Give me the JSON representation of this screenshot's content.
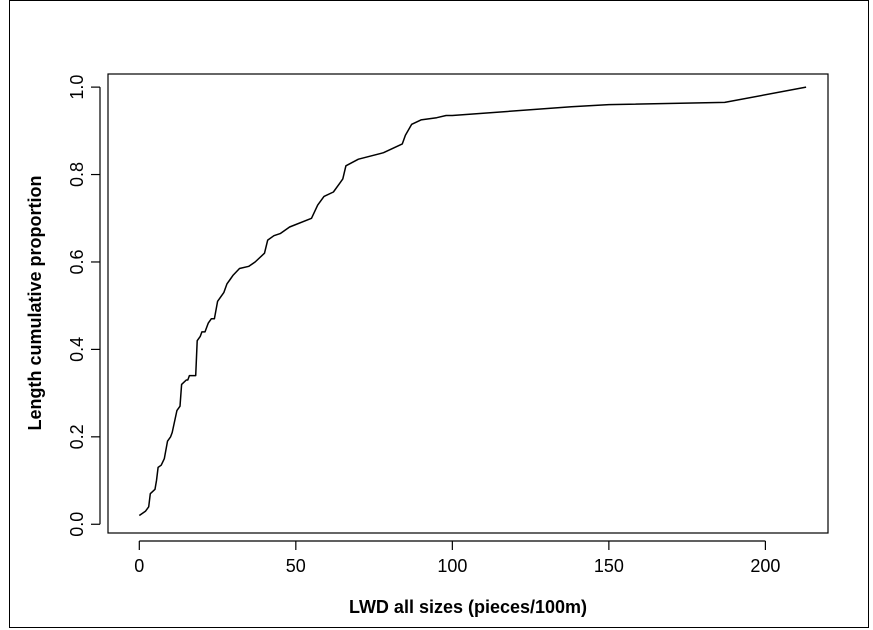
{
  "chart_data": {
    "type": "line",
    "title": "",
    "xlabel": "LWD all sizes (pieces/100m)",
    "ylabel": "Length cumulative proportion",
    "xlim": [
      -10,
      220
    ],
    "ylim": [
      -0.02,
      1.03
    ],
    "xticks": [
      0,
      50,
      100,
      150,
      200
    ],
    "yticks": [
      0.0,
      0.2,
      0.4,
      0.6,
      0.8,
      1.0
    ],
    "xtick_labels": [
      "0",
      "50",
      "100",
      "150",
      "200"
    ],
    "ytick_labels": [
      "0.0",
      "0.2",
      "0.4",
      "0.6",
      "0.8",
      "1.0"
    ],
    "grid": false,
    "series": [
      {
        "color": "#000000",
        "x": [
          0,
          2,
          3,
          3.5,
          5,
          5.5,
          6,
          7,
          8,
          9,
          10,
          10.5,
          12,
          13,
          13.5,
          15,
          15.5,
          16,
          18,
          18.5,
          19.5,
          20,
          21,
          22,
          23,
          24,
          25,
          27,
          28,
          29,
          30,
          32,
          35,
          37,
          40,
          41,
          43,
          45,
          48,
          55,
          57,
          59,
          62,
          64,
          65,
          66,
          70,
          78,
          84,
          85,
          87,
          90,
          95,
          98,
          100,
          138,
          150,
          187,
          213
        ],
        "y": [
          0.02,
          0.03,
          0.04,
          0.07,
          0.08,
          0.1,
          0.13,
          0.135,
          0.15,
          0.19,
          0.2,
          0.21,
          0.26,
          0.27,
          0.32,
          0.33,
          0.33,
          0.34,
          0.34,
          0.42,
          0.43,
          0.44,
          0.44,
          0.46,
          0.47,
          0.47,
          0.51,
          0.53,
          0.55,
          0.56,
          0.57,
          0.585,
          0.59,
          0.6,
          0.62,
          0.65,
          0.66,
          0.665,
          0.68,
          0.7,
          0.73,
          0.75,
          0.76,
          0.78,
          0.79,
          0.82,
          0.835,
          0.85,
          0.87,
          0.89,
          0.915,
          0.925,
          0.93,
          0.935,
          0.935,
          0.955,
          0.96,
          0.965,
          1.0
        ]
      }
    ]
  }
}
